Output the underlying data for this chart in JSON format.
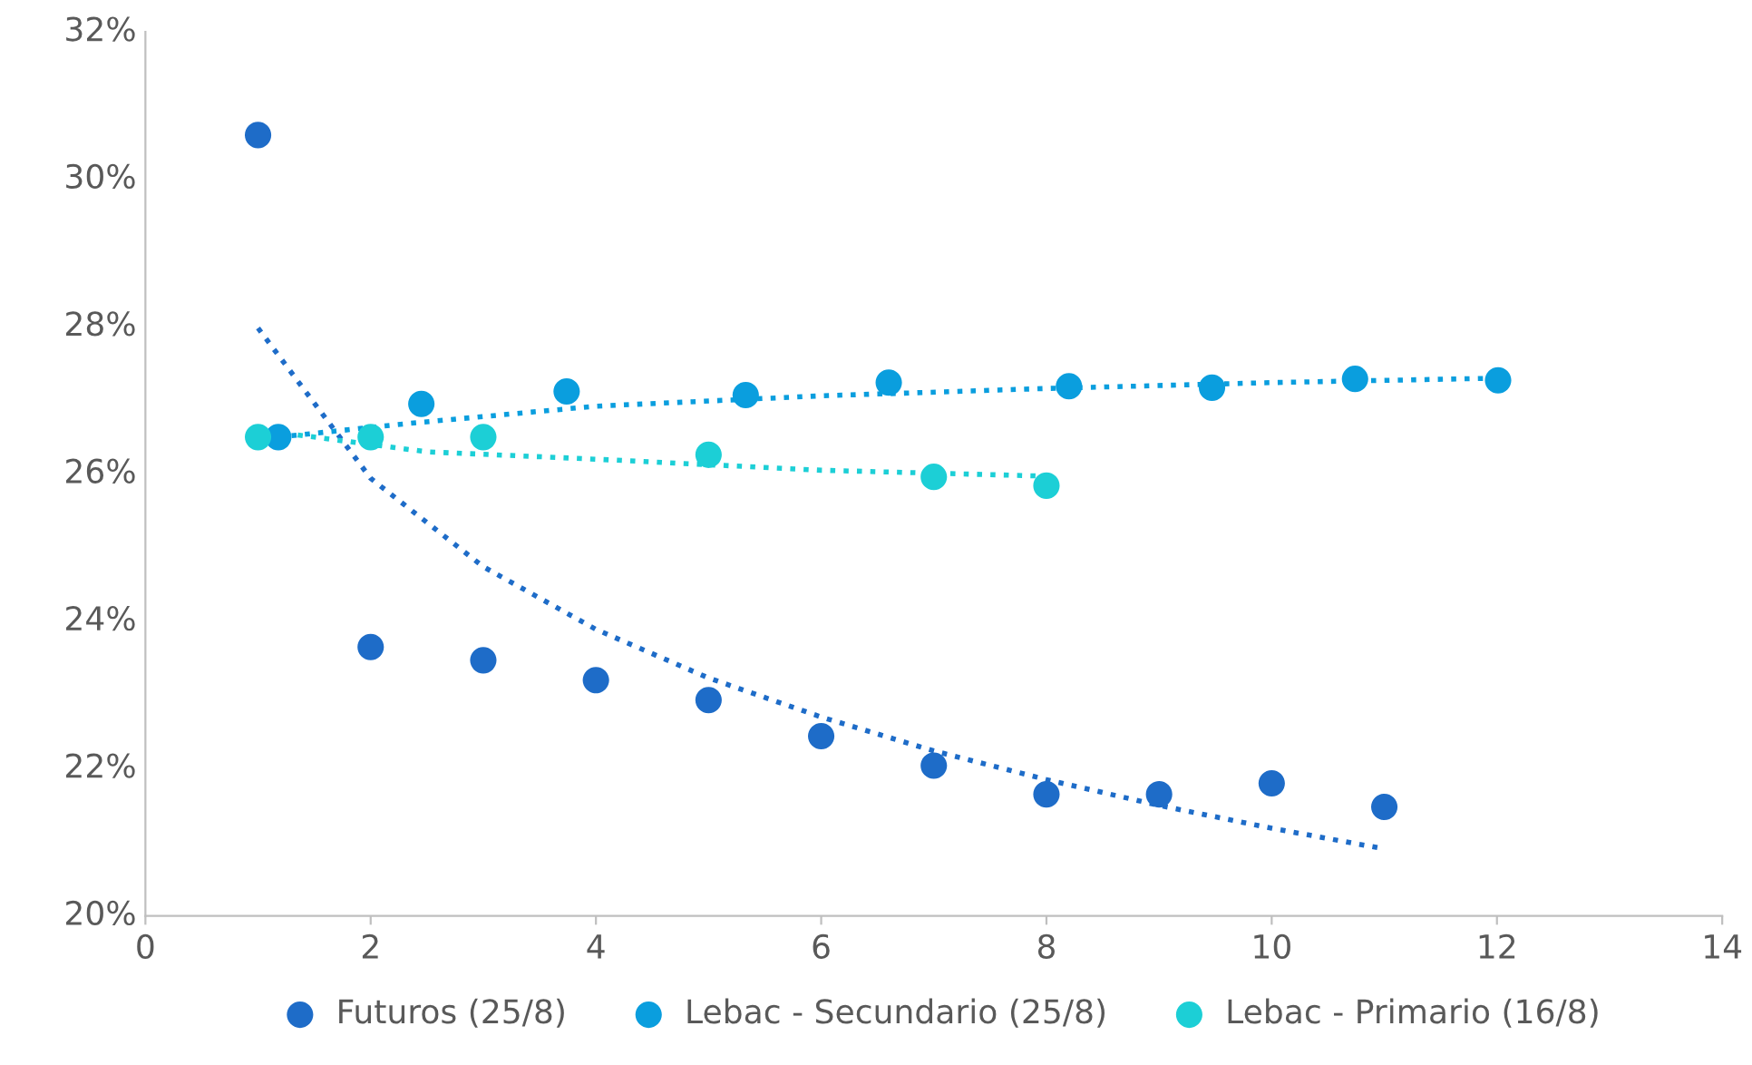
{
  "chart_data": {
    "type": "scatter",
    "xlim": [
      0,
      14
    ],
    "xticks": [
      0,
      2,
      4,
      6,
      8,
      10,
      12,
      14
    ],
    "ylim": [
      20,
      32
    ],
    "yticks": [
      {
        "value": 20,
        "label": "20%"
      },
      {
        "value": 22,
        "label": "22%"
      },
      {
        "value": 24,
        "label": "24%"
      },
      {
        "value": 26,
        "label": "26%"
      },
      {
        "value": 28,
        "label": "28%"
      },
      {
        "value": 30,
        "label": "30%"
      },
      {
        "value": 32,
        "label": "32%"
      }
    ],
    "grid": false,
    "legend": "bottom",
    "series": [
      {
        "name": "Futuros (25/8)",
        "color": "#1e6cc8",
        "x": [
          1,
          2,
          3,
          4,
          5,
          6,
          7,
          8,
          9,
          10,
          11
        ],
        "values": [
          30.6,
          23.65,
          23.47,
          23.2,
          22.93,
          22.44,
          22.04,
          21.65,
          21.65,
          21.8,
          21.48
        ]
      },
      {
        "name": "Lebac - Secundario (25/8)",
        "color": "#0a9ede",
        "x": [
          1.18,
          2.45,
          3.74,
          5.33,
          6.6,
          8.2,
          9.47,
          10.74,
          12.01
        ],
        "values": [
          26.5,
          26.95,
          27.12,
          27.07,
          27.24,
          27.19,
          27.17,
          27.29,
          27.27
        ]
      },
      {
        "name": "Lebac - Primario (16/8)",
        "color": "#1ccfd6",
        "x": [
          1,
          2,
          3,
          5,
          7,
          8
        ],
        "values": [
          26.5,
          26.5,
          26.5,
          26.26,
          25.96,
          25.84
        ]
      },
      {
        "type": "line",
        "line_style": "dotted",
        "color": "#1e6cc8",
        "x": [
          1,
          2,
          3,
          4,
          5,
          6,
          7,
          8,
          9,
          10,
          11
        ],
        "values": [
          27.98,
          25.94,
          24.74,
          23.89,
          23.23,
          22.7,
          22.24,
          21.85,
          21.5,
          21.19,
          20.91
        ]
      },
      {
        "type": "line",
        "line_style": "dotted",
        "color": "#0a9ede",
        "x": [
          1.18,
          2.3,
          4,
          6,
          8,
          10,
          12
        ],
        "values": [
          26.5,
          26.68,
          26.92,
          27.06,
          27.16,
          27.24,
          27.3
        ]
      },
      {
        "type": "line",
        "line_style": "dotted",
        "color": "#1ccfd6",
        "x": [
          1,
          2.5,
          4,
          6,
          8
        ],
        "values": [
          26.6,
          26.3,
          26.2,
          26.05,
          25.97
        ]
      }
    ]
  }
}
